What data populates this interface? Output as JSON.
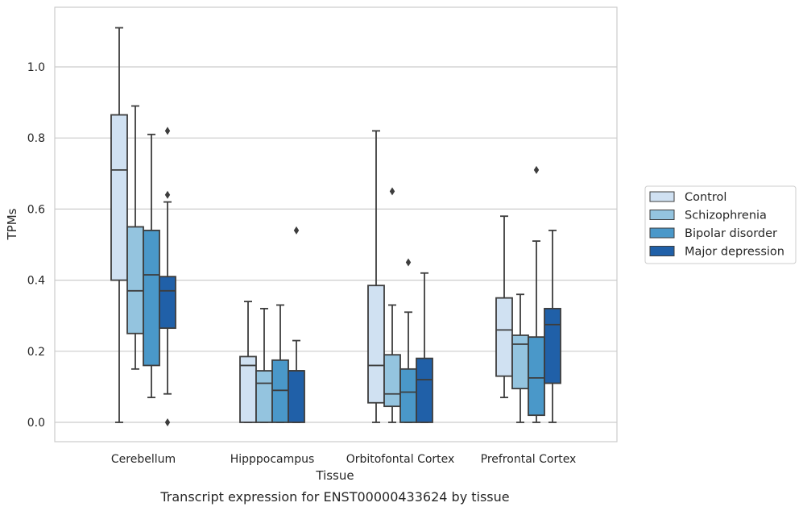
{
  "chart_data": {
    "type": "box",
    "xlabel": "Tissue",
    "ylabel": "TPMs",
    "caption": "Transcript expression for ENST00000433624 by tissue",
    "ylim": [
      -0.055,
      1.175
    ],
    "yticks": [
      "0.0",
      "0.2",
      "0.4",
      "0.6",
      "0.8",
      "1.0"
    ],
    "grid": "horizontal",
    "legend_position": "right",
    "categories": [
      "Cerebellum",
      "Hipppocampus",
      "Orbitofontal Cortex",
      "Prefrontal Cortex"
    ],
    "series": [
      {
        "name": "Control",
        "color": "#d0e1f2",
        "boxes": [
          {
            "whislo": 0.0,
            "q1": 0.4,
            "med": 0.71,
            "q3": 0.865,
            "whishi": 1.11,
            "fliers": []
          },
          {
            "whislo": 0.0,
            "q1": 0.0,
            "med": 0.16,
            "q3": 0.185,
            "whishi": 0.34,
            "fliers": []
          },
          {
            "whislo": 0.0,
            "q1": 0.055,
            "med": 0.16,
            "q3": 0.385,
            "whishi": 0.82,
            "fliers": []
          },
          {
            "whislo": 0.07,
            "q1": 0.13,
            "med": 0.26,
            "q3": 0.35,
            "whishi": 0.58,
            "fliers": []
          }
        ]
      },
      {
        "name": "Schizophrenia",
        "color": "#94c4df",
        "boxes": [
          {
            "whislo": 0.15,
            "q1": 0.25,
            "med": 0.37,
            "q3": 0.55,
            "whishi": 0.89,
            "fliers": []
          },
          {
            "whislo": 0.0,
            "q1": 0.0,
            "med": 0.11,
            "q3": 0.145,
            "whishi": 0.32,
            "fliers": []
          },
          {
            "whislo": 0.0,
            "q1": 0.045,
            "med": 0.08,
            "q3": 0.19,
            "whishi": 0.33,
            "fliers": [
              0.65
            ]
          },
          {
            "whislo": 0.0,
            "q1": 0.095,
            "med": 0.22,
            "q3": 0.245,
            "whishi": 0.36,
            "fliers": []
          }
        ]
      },
      {
        "name": "Bipolar disorder",
        "color": "#4a98c9",
        "boxes": [
          {
            "whislo": 0.07,
            "q1": 0.16,
            "med": 0.415,
            "q3": 0.54,
            "whishi": 0.81,
            "fliers": []
          },
          {
            "whislo": 0.0,
            "q1": 0.0,
            "med": 0.09,
            "q3": 0.175,
            "whishi": 0.33,
            "fliers": []
          },
          {
            "whislo": 0.0,
            "q1": 0.0,
            "med": 0.085,
            "q3": 0.15,
            "whishi": 0.31,
            "fliers": [
              0.45
            ]
          },
          {
            "whislo": 0.0,
            "q1": 0.02,
            "med": 0.125,
            "q3": 0.24,
            "whishi": 0.51,
            "fliers": [
              0.71
            ]
          }
        ]
      },
      {
        "name": "Major depression",
        "color": "#2060a8",
        "boxes": [
          {
            "whislo": 0.08,
            "q1": 0.265,
            "med": 0.37,
            "q3": 0.41,
            "whishi": 0.62,
            "fliers": [
              0.0,
              0.64,
              0.82
            ]
          },
          {
            "whislo": 0.0,
            "q1": 0.0,
            "med": 0.145,
            "q3": 0.145,
            "whishi": 0.23,
            "fliers": [
              0.54
            ]
          },
          {
            "whislo": 0.0,
            "q1": 0.0,
            "med": 0.12,
            "q3": 0.18,
            "whishi": 0.42,
            "fliers": []
          },
          {
            "whislo": 0.0,
            "q1": 0.11,
            "med": 0.275,
            "q3": 0.32,
            "whishi": 0.54,
            "fliers": []
          }
        ]
      }
    ]
  }
}
